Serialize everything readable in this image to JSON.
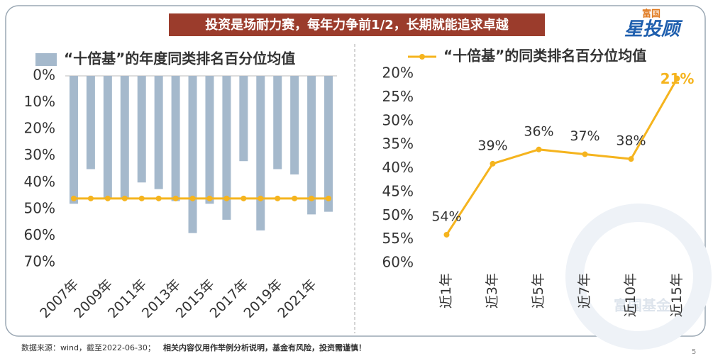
{
  "header": {
    "title": "投资是场耐力赛，每年力争前1/2，长期就能追求卓越",
    "logo_top": "富国",
    "logo_main": "星投顾"
  },
  "chart_data": [
    {
      "type": "bar",
      "legend": "“十倍基”的年度同类排名百分位均值",
      "y_reversed": true,
      "categories": [
        "2007年",
        null,
        "2009年",
        null,
        "2011年",
        null,
        "2013年",
        null,
        "2015年",
        null,
        "2017年",
        null,
        "2019年",
        null,
        "2021年",
        null
      ],
      "series": [
        {
          "name": "“十倍基”的年度同类排名百分位均值",
          "color": "#a5b9cc",
          "values": [
            48,
            35,
            46,
            46,
            40,
            42.5,
            47,
            59,
            48,
            54,
            32,
            58,
            35,
            37,
            52,
            51
          ]
        },
        {
          "type": "line",
          "color": "#f5b41e",
          "values": [
            46,
            46,
            46,
            46,
            46,
            46,
            46,
            46,
            46,
            46,
            46,
            46,
            46,
            46,
            46,
            46
          ]
        }
      ],
      "ylim": [
        0,
        70
      ],
      "yticks": [
        {
          "value": 0,
          "label": "0%"
        },
        {
          "value": 10,
          "label": "10%"
        },
        {
          "value": 20,
          "label": "20%"
        },
        {
          "value": 30,
          "label": "30%"
        },
        {
          "value": 40,
          "label": "40%"
        },
        {
          "value": 50,
          "label": "50%"
        },
        {
          "value": 60,
          "label": "60%"
        },
        {
          "value": 70,
          "label": "70%"
        }
      ]
    },
    {
      "type": "line",
      "legend": "“十倍基”的同类排名百分位均值",
      "y_reversed": true,
      "categories": [
        "近1年",
        "近3年",
        "近5年",
        "近7年",
        "近10年",
        "近15年"
      ],
      "series": [
        {
          "name": "“十倍基”的同类排名百分位均值",
          "color": "#f5b41e",
          "values": [
            54,
            39,
            36,
            37,
            38,
            21
          ],
          "value_labels": [
            "54%",
            "39%",
            "36%",
            "37%",
            "38%",
            "21%"
          ]
        }
      ],
      "ylim": [
        20,
        60
      ],
      "yticks": [
        {
          "value": 20,
          "label": "20%"
        },
        {
          "value": 25,
          "label": "25%"
        },
        {
          "value": 30,
          "label": "30%"
        },
        {
          "value": 35,
          "label": "35%"
        },
        {
          "value": 40,
          "label": "40%"
        },
        {
          "value": 45,
          "label": "45%"
        },
        {
          "value": 50,
          "label": "50%"
        },
        {
          "value": 55,
          "label": "55%"
        },
        {
          "value": 60,
          "label": "60%"
        }
      ]
    }
  ],
  "watermark": "富国基金",
  "footer": {
    "source": "数据来源：wind，截至2022-06-30；",
    "note": "相关内容仅用作举例分析说明，基金有风险，投资需谨慎！",
    "page": "5"
  }
}
